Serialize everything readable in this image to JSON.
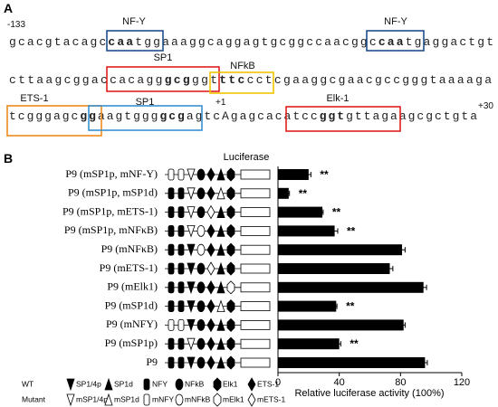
{
  "panel_labels": [
    "A",
    "B"
  ],
  "panel_a": {
    "markers": [
      "-133",
      "+1",
      "+30"
    ],
    "lines": [
      {
        "segments": [
          {
            "text": "gcacgtacagc",
            "bold": false
          },
          {
            "text": "caa",
            "bold": true
          },
          {
            "text": "tggaaaggcaggagtgcggccaacggc",
            "bold": false
          },
          {
            "text": "caa",
            "bold": true
          },
          {
            "text": "tgaggactgt",
            "bold": false
          }
        ]
      },
      {
        "segments": [
          {
            "text": "cttaagcggaccacagg",
            "bold": false
          },
          {
            "text": "gcg",
            "bold": true
          },
          {
            "text": "ggt",
            "bold": false
          },
          {
            "text": "ttc",
            "bold": true
          },
          {
            "text": "cctcgaaggcgaacgccgggtaaaaga",
            "bold": false
          }
        ]
      },
      {
        "segments": [
          {
            "text": "tcgggagc",
            "bold": false
          },
          {
            "text": "gg",
            "bold": true
          },
          {
            "text": "aagtggg",
            "bold": false
          },
          {
            "text": "gcg",
            "bold": true
          },
          {
            "text": "agtcAgagcacatcc",
            "bold": false
          },
          {
            "text": "ggt",
            "bold": true
          },
          {
            "text": "gttagaagcgctgta",
            "bold": false
          }
        ]
      }
    ],
    "sites": [
      {
        "label": "NF-Y",
        "color": "#1f4e8c"
      },
      {
        "label": "NF-Y",
        "color": "#1f4e8c"
      },
      {
        "label": "SP1",
        "color": "#e02020"
      },
      {
        "label": "NFkB",
        "color": "#f2c500"
      },
      {
        "label": "ETS-1",
        "color": "#f08a1c"
      },
      {
        "label": "SP1",
        "color": "#3a8fd0"
      },
      {
        "label": "Elk-1",
        "color": "#e02020"
      }
    ]
  },
  "chart_data": {
    "type": "bar",
    "orientation": "horizontal",
    "construct_label": "Luciferase",
    "categories": [
      "P9 (mSP1p, mNF-Y)",
      "P9 (mSP1p, mSP1d)",
      "P9 (mSP1p, mETS-1)",
      "P9 (mSP1p, mNFκB)",
      "P9 (mNFκB)",
      "P9 (mETS-1)",
      "P9 (mElk1)",
      "P9 (mSP1d)",
      "P9 (mNFY)",
      "P9 (mSP1p)",
      "P9"
    ],
    "values": [
      20,
      7,
      29,
      37,
      81,
      73,
      95,
      38,
      82,
      40,
      96
    ],
    "errors": [
      1.5,
      0.5,
      0.5,
      2,
      2,
      2,
      2,
      0.5,
      1,
      1,
      1.5
    ],
    "annotations": [
      "**",
      "**",
      "**",
      "**",
      null,
      null,
      null,
      "**",
      null,
      "**",
      null
    ],
    "mutations": [
      [
        0,
        2
      ],
      [
        0,
        1
      ],
      [
        0,
        5
      ],
      [
        0,
        3
      ],
      [
        3
      ],
      [
        5
      ],
      [
        4
      ],
      [
        1
      ],
      [
        2
      ],
      [
        0
      ],
      []
    ],
    "color": "#000000",
    "xlim": [
      0,
      120
    ],
    "xticks": [
      0,
      40,
      80,
      120
    ],
    "xlabel": "Relative luciferase activity (100%)",
    "legend": {
      "wt_label": "WT",
      "mutant_label": "Mutant",
      "wt": [
        "SP1/4p",
        "SP1d",
        "NFY",
        "NFkB",
        "Elk1",
        "ETS-1"
      ],
      "mutant": [
        "mSP1/4p",
        "mSP1d",
        "mNFY",
        "mNFkB",
        "mElk1",
        "mETS-1"
      ]
    }
  }
}
